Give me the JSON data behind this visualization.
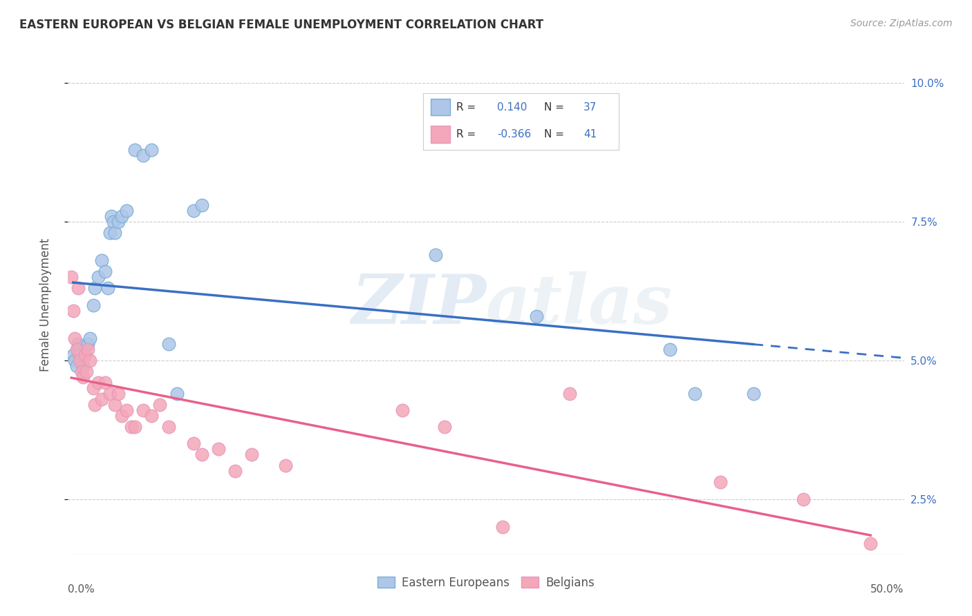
{
  "title": "EASTERN EUROPEAN VS BELGIAN FEMALE UNEMPLOYMENT CORRELATION CHART",
  "source": "Source: ZipAtlas.com",
  "ylabel": "Female Unemployment",
  "xlim": [
    0,
    0.5
  ],
  "ylim": [
    0.015,
    0.105
  ],
  "yticks": [
    0.025,
    0.05,
    0.075,
    0.1
  ],
  "ytick_labels": [
    "2.5%",
    "5.0%",
    "7.5%",
    "10.0%"
  ],
  "xtick_left_label": "0.0%",
  "xtick_right_label": "50.0%",
  "watermark_part1": "ZIP",
  "watermark_part2": "atlas",
  "legend_entries": [
    {
      "label": "Eastern Europeans",
      "color": "#aec6e8",
      "R": "0.140",
      "N": "37"
    },
    {
      "label": "Belgians",
      "color": "#f4a7b9",
      "R": "-0.366",
      "N": "41"
    }
  ],
  "blue_R": 0.14,
  "blue_N": 37,
  "pink_R": -0.366,
  "pink_N": 41,
  "blue_line_color": "#3a6fc4",
  "pink_line_color": "#e8608a",
  "blue_scatter_color": "#aec6e8",
  "pink_scatter_color": "#f4a7b9",
  "blue_scatter_edge": "#7aaed4",
  "pink_scatter_edge": "#e898b8",
  "background_color": "#ffffff",
  "grid_color": "#cccccc",
  "title_color": "#333333",
  "right_yaxis_color": "#3a6fc4",
  "blue_points_x": [
    0.003,
    0.004,
    0.005,
    0.006,
    0.006,
    0.007,
    0.008,
    0.008,
    0.009,
    0.01,
    0.012,
    0.013,
    0.015,
    0.016,
    0.018,
    0.02,
    0.022,
    0.024,
    0.025,
    0.026,
    0.027,
    0.028,
    0.03,
    0.032,
    0.035,
    0.04,
    0.045,
    0.05,
    0.06,
    0.065,
    0.075,
    0.08,
    0.22,
    0.28,
    0.36,
    0.375,
    0.41
  ],
  "blue_points_y": [
    0.051,
    0.05,
    0.049,
    0.052,
    0.053,
    0.051,
    0.05,
    0.05,
    0.049,
    0.051,
    0.053,
    0.054,
    0.06,
    0.063,
    0.065,
    0.068,
    0.066,
    0.063,
    0.073,
    0.076,
    0.075,
    0.073,
    0.075,
    0.076,
    0.077,
    0.088,
    0.087,
    0.088,
    0.053,
    0.044,
    0.077,
    0.078,
    0.069,
    0.058,
    0.052,
    0.044,
    0.044
  ],
  "pink_points_x": [
    0.002,
    0.003,
    0.004,
    0.005,
    0.006,
    0.007,
    0.008,
    0.009,
    0.01,
    0.011,
    0.012,
    0.013,
    0.015,
    0.016,
    0.018,
    0.02,
    0.022,
    0.025,
    0.028,
    0.03,
    0.032,
    0.035,
    0.038,
    0.04,
    0.045,
    0.05,
    0.055,
    0.06,
    0.075,
    0.08,
    0.09,
    0.1,
    0.11,
    0.13,
    0.2,
    0.225,
    0.26,
    0.3,
    0.39,
    0.44,
    0.48
  ],
  "pink_points_y": [
    0.065,
    0.059,
    0.054,
    0.052,
    0.063,
    0.05,
    0.048,
    0.047,
    0.051,
    0.048,
    0.052,
    0.05,
    0.045,
    0.042,
    0.046,
    0.043,
    0.046,
    0.044,
    0.042,
    0.044,
    0.04,
    0.041,
    0.038,
    0.038,
    0.041,
    0.04,
    0.042,
    0.038,
    0.035,
    0.033,
    0.034,
    0.03,
    0.033,
    0.031,
    0.041,
    0.038,
    0.02,
    0.044,
    0.028,
    0.025,
    0.017
  ]
}
